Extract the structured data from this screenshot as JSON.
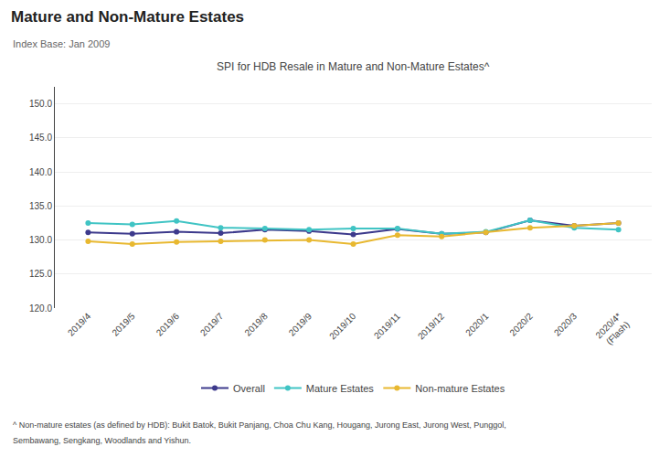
{
  "chart_data": {
    "type": "line",
    "title": "Mature and Non-Mature Estates",
    "subtitle": [
      "Index Base: Jan 2009",
      "SPI for HDB Resale in Mature and Non-Mature Estates^"
    ],
    "annotations": [
      "^ Non-mature estates (as defined by HDB): Bukit Batok, Bukit Panjang, Choa Chu Kang, Hougang, Jurong East, Jurong West, Punggol,",
      "Sembawang, Sengkang, Woodlands and Yishun."
    ],
    "categories": [
      "2019/4",
      "2019/5",
      "2019/6",
      "2019/7",
      "2019/8",
      "2019/9",
      "2019/10",
      "2019/11",
      "2019/12",
      "2020/1",
      "2020/2",
      "2020/3",
      "2020/4*\n(Flash)"
    ],
    "series": [
      {
        "name": "Overall",
        "color": "#3d3a8c",
        "marker": "circle",
        "line_style": "solid",
        "values": [
          131.1,
          130.9,
          131.2,
          131.0,
          131.5,
          131.3,
          130.8,
          131.6,
          130.9,
          131.1,
          132.9,
          132.1,
          132.5
        ]
      },
      {
        "name": "Mature Estates",
        "color": "#40c4c4",
        "marker": "circle",
        "line_style": "solid",
        "values": [
          132.5,
          132.3,
          132.8,
          131.8,
          131.7,
          131.5,
          131.7,
          131.7,
          130.9,
          131.2,
          132.9,
          131.8,
          131.5
        ]
      },
      {
        "name": "Non-mature Estates",
        "color": "#e8b830",
        "marker": "circle",
        "line_style": "solid",
        "values": [
          129.8,
          129.4,
          129.7,
          129.8,
          130.0,
          130.0,
          129.4,
          130.7,
          130.5,
          131.1,
          131.8,
          132.1,
          132.5
        ]
      }
    ],
    "ylim": [
      120.0,
      152.5
    ],
    "yticks": [
      {
        "value": 120,
        "label": "120.0"
      },
      {
        "value": 125,
        "label": "125.0"
      },
      {
        "value": 130,
        "label": "130.0"
      },
      {
        "value": 135,
        "label": "135.0"
      },
      {
        "value": 140,
        "label": "140.0"
      },
      {
        "value": 145,
        "label": "145.0"
      },
      {
        "value": 150,
        "label": "150.0"
      }
    ],
    "grid": true,
    "legend": "lower center"
  }
}
